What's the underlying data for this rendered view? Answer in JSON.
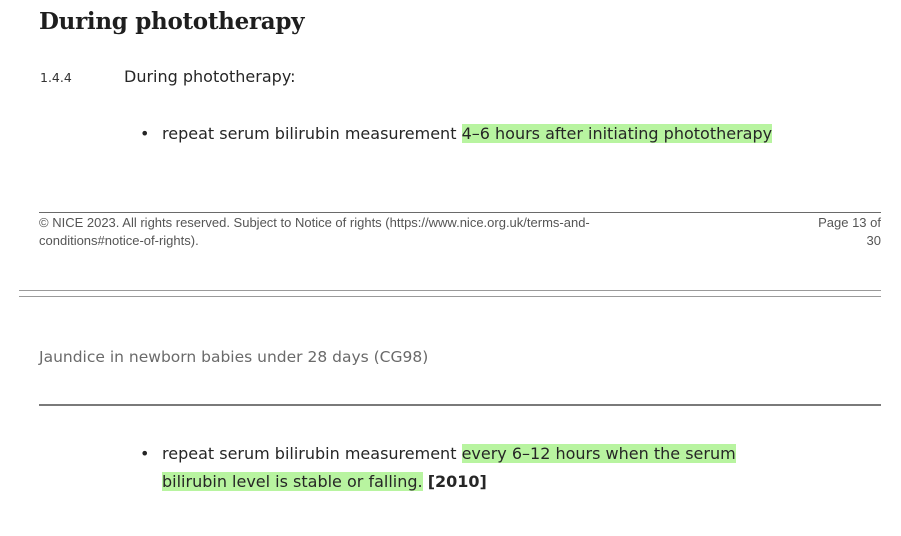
{
  "section": {
    "heading": "During phototherapy",
    "recommendation_number": "1.4.4",
    "recommendation_text": "During phototherapy:"
  },
  "bullet_1": {
    "plain": "repeat serum bilirubin measurement ",
    "highlighted": "4–6 hours after initiating phototherapy"
  },
  "footer": {
    "copyright_line1": "© NICE 2023. All rights reserved. Subject to Notice of rights (https://www.nice.org.uk/terms-and-",
    "copyright_line2": "conditions#notice-of-rights).",
    "page_line1": "Page 13 of",
    "page_line2": "30"
  },
  "running_header": "Jaundice in newborn babies under 28 days (CG98)",
  "bullet_2": {
    "plain": "repeat serum bilirubin measurement ",
    "highlighted_line1": "every 6–12 hours when the serum",
    "highlighted_line2": "bilirubin level is stable or falling.",
    "reference": "[2010]"
  },
  "colors": {
    "highlight": "#b8f4a0",
    "heading_text": "#1e1e1e",
    "footer_text": "#555555",
    "running_header_text": "#6a6a6a"
  }
}
